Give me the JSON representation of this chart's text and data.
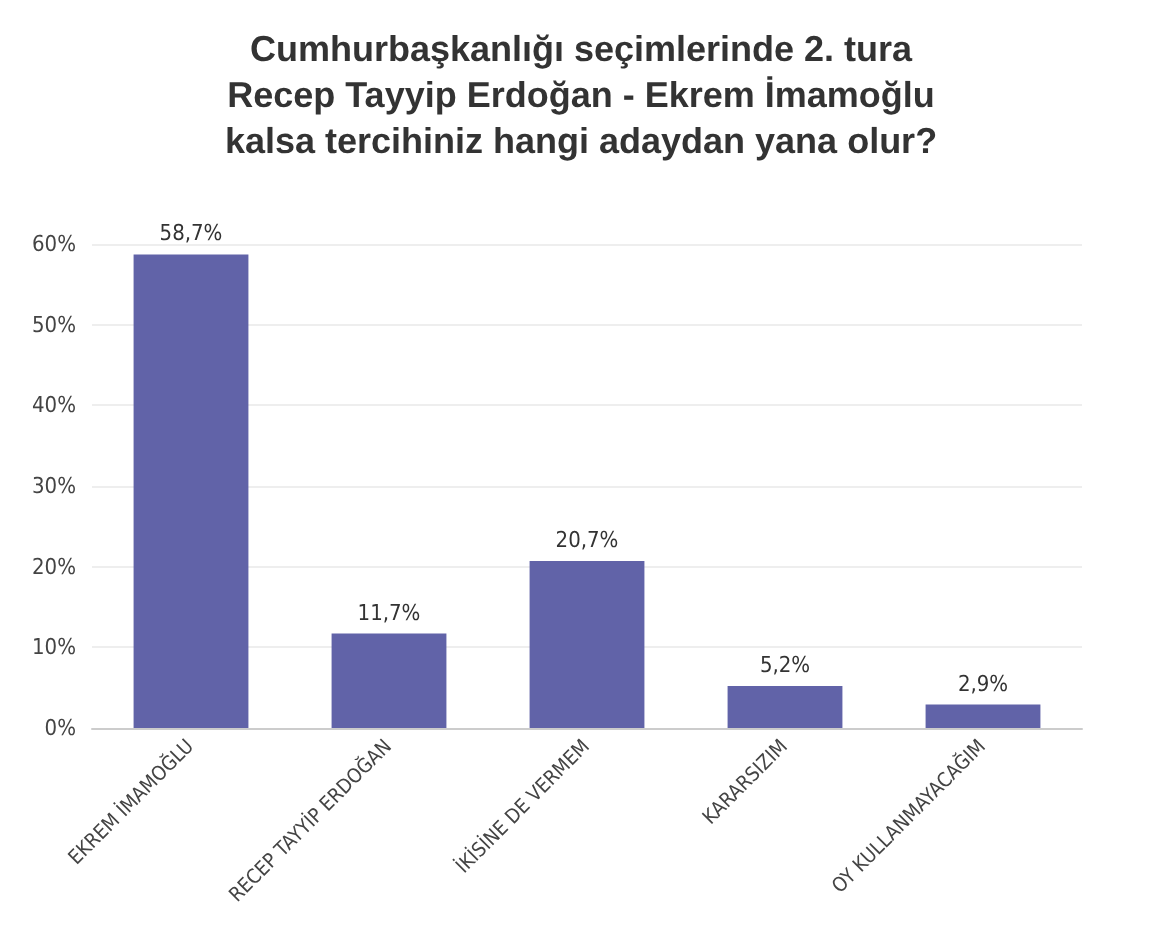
{
  "chart_data": {
    "type": "bar",
    "title": "Cumhurbaşkanlığı seçimlerinde 2. tura\nRecep Tayyip Erdoğan - Ekrem İmamoğlu\nkalsa tercihiniz hangi adaydan yana olur?",
    "categories": [
      "EKREM İMAMOĞLU",
      "RECEP TAYYİP ERDOĞAN",
      "İKİSİNE DE VERMEM",
      "KARARSIZIM",
      "OY KULLANMAYACAĞIM"
    ],
    "values": [
      58.7,
      11.7,
      20.7,
      5.2,
      2.9
    ],
    "value_labels": [
      "58,7%",
      "11,7%",
      "20,7%",
      "5,2%",
      "2,9%"
    ],
    "color": "#6163a8",
    "ylim": [
      0,
      60
    ],
    "yticks": [
      {
        "value": 0,
        "label": "0%"
      },
      {
        "value": 10,
        "label": "10%"
      },
      {
        "value": 20,
        "label": "20%"
      },
      {
        "value": 30,
        "label": "30%"
      },
      {
        "value": 40,
        "label": "40%"
      },
      {
        "value": 50,
        "label": "50%"
      },
      {
        "value": 60,
        "label": "60%"
      }
    ],
    "grid": "y"
  }
}
